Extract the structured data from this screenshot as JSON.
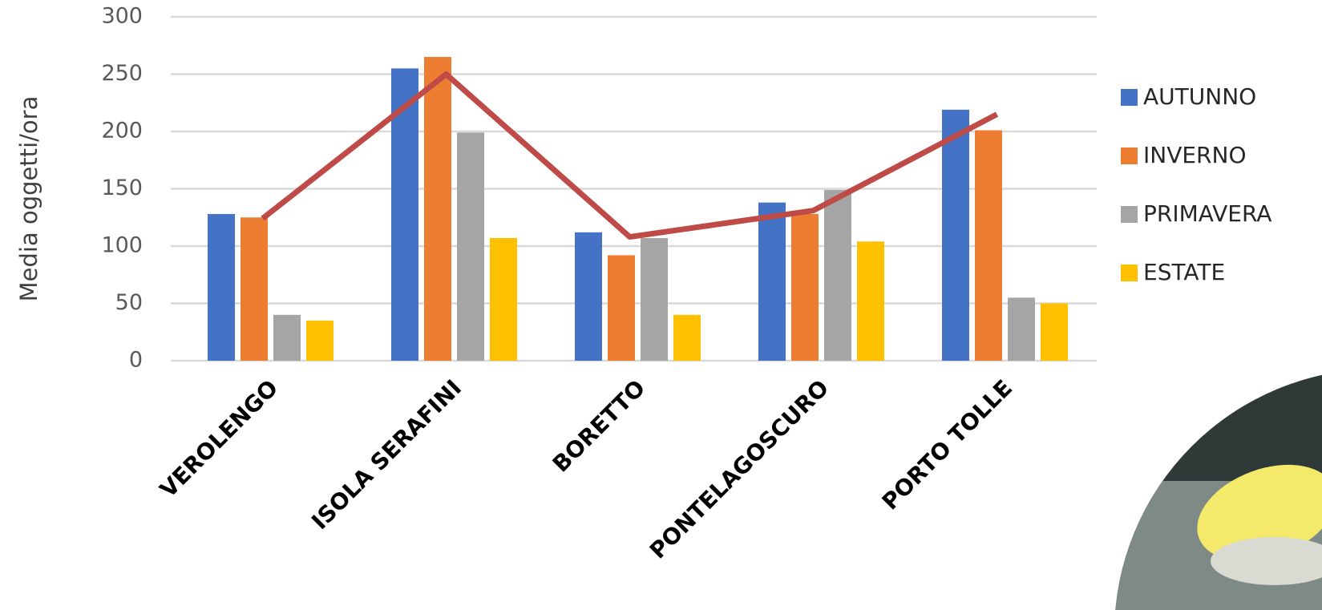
{
  "chart_data": {
    "type": "bar",
    "y_label": "Media oggetti/ora",
    "categories": [
      "VEROLENGO",
      "ISOLA SERAFINI",
      "BORETTO",
      "PONTELAGOSCURO",
      "PORTO TOLLE"
    ],
    "series": [
      {
        "name": "AUTUNNO",
        "color": "#4472c4",
        "values": [
          128,
          255,
          112,
          138,
          219
        ]
      },
      {
        "name": "INVERNO",
        "color": "#ed7d31",
        "values": [
          125,
          265,
          92,
          128,
          201
        ]
      },
      {
        "name": "PRIMAVERA",
        "color": "#a5a5a5",
        "values": [
          40,
          199,
          107,
          149,
          55
        ]
      },
      {
        "name": "ESTATE",
        "color": "#ffc000",
        "values": [
          35,
          107,
          40,
          104,
          50
        ]
      },
      {
        "type": "line",
        "color": "#be4b48",
        "values": [
          124,
          250,
          108,
          131,
          215
        ]
      }
    ],
    "ylim": [
      0,
      300
    ],
    "yticks": [
      0,
      50,
      100,
      150,
      200,
      250,
      300
    ],
    "grid": true,
    "legend": "right"
  }
}
